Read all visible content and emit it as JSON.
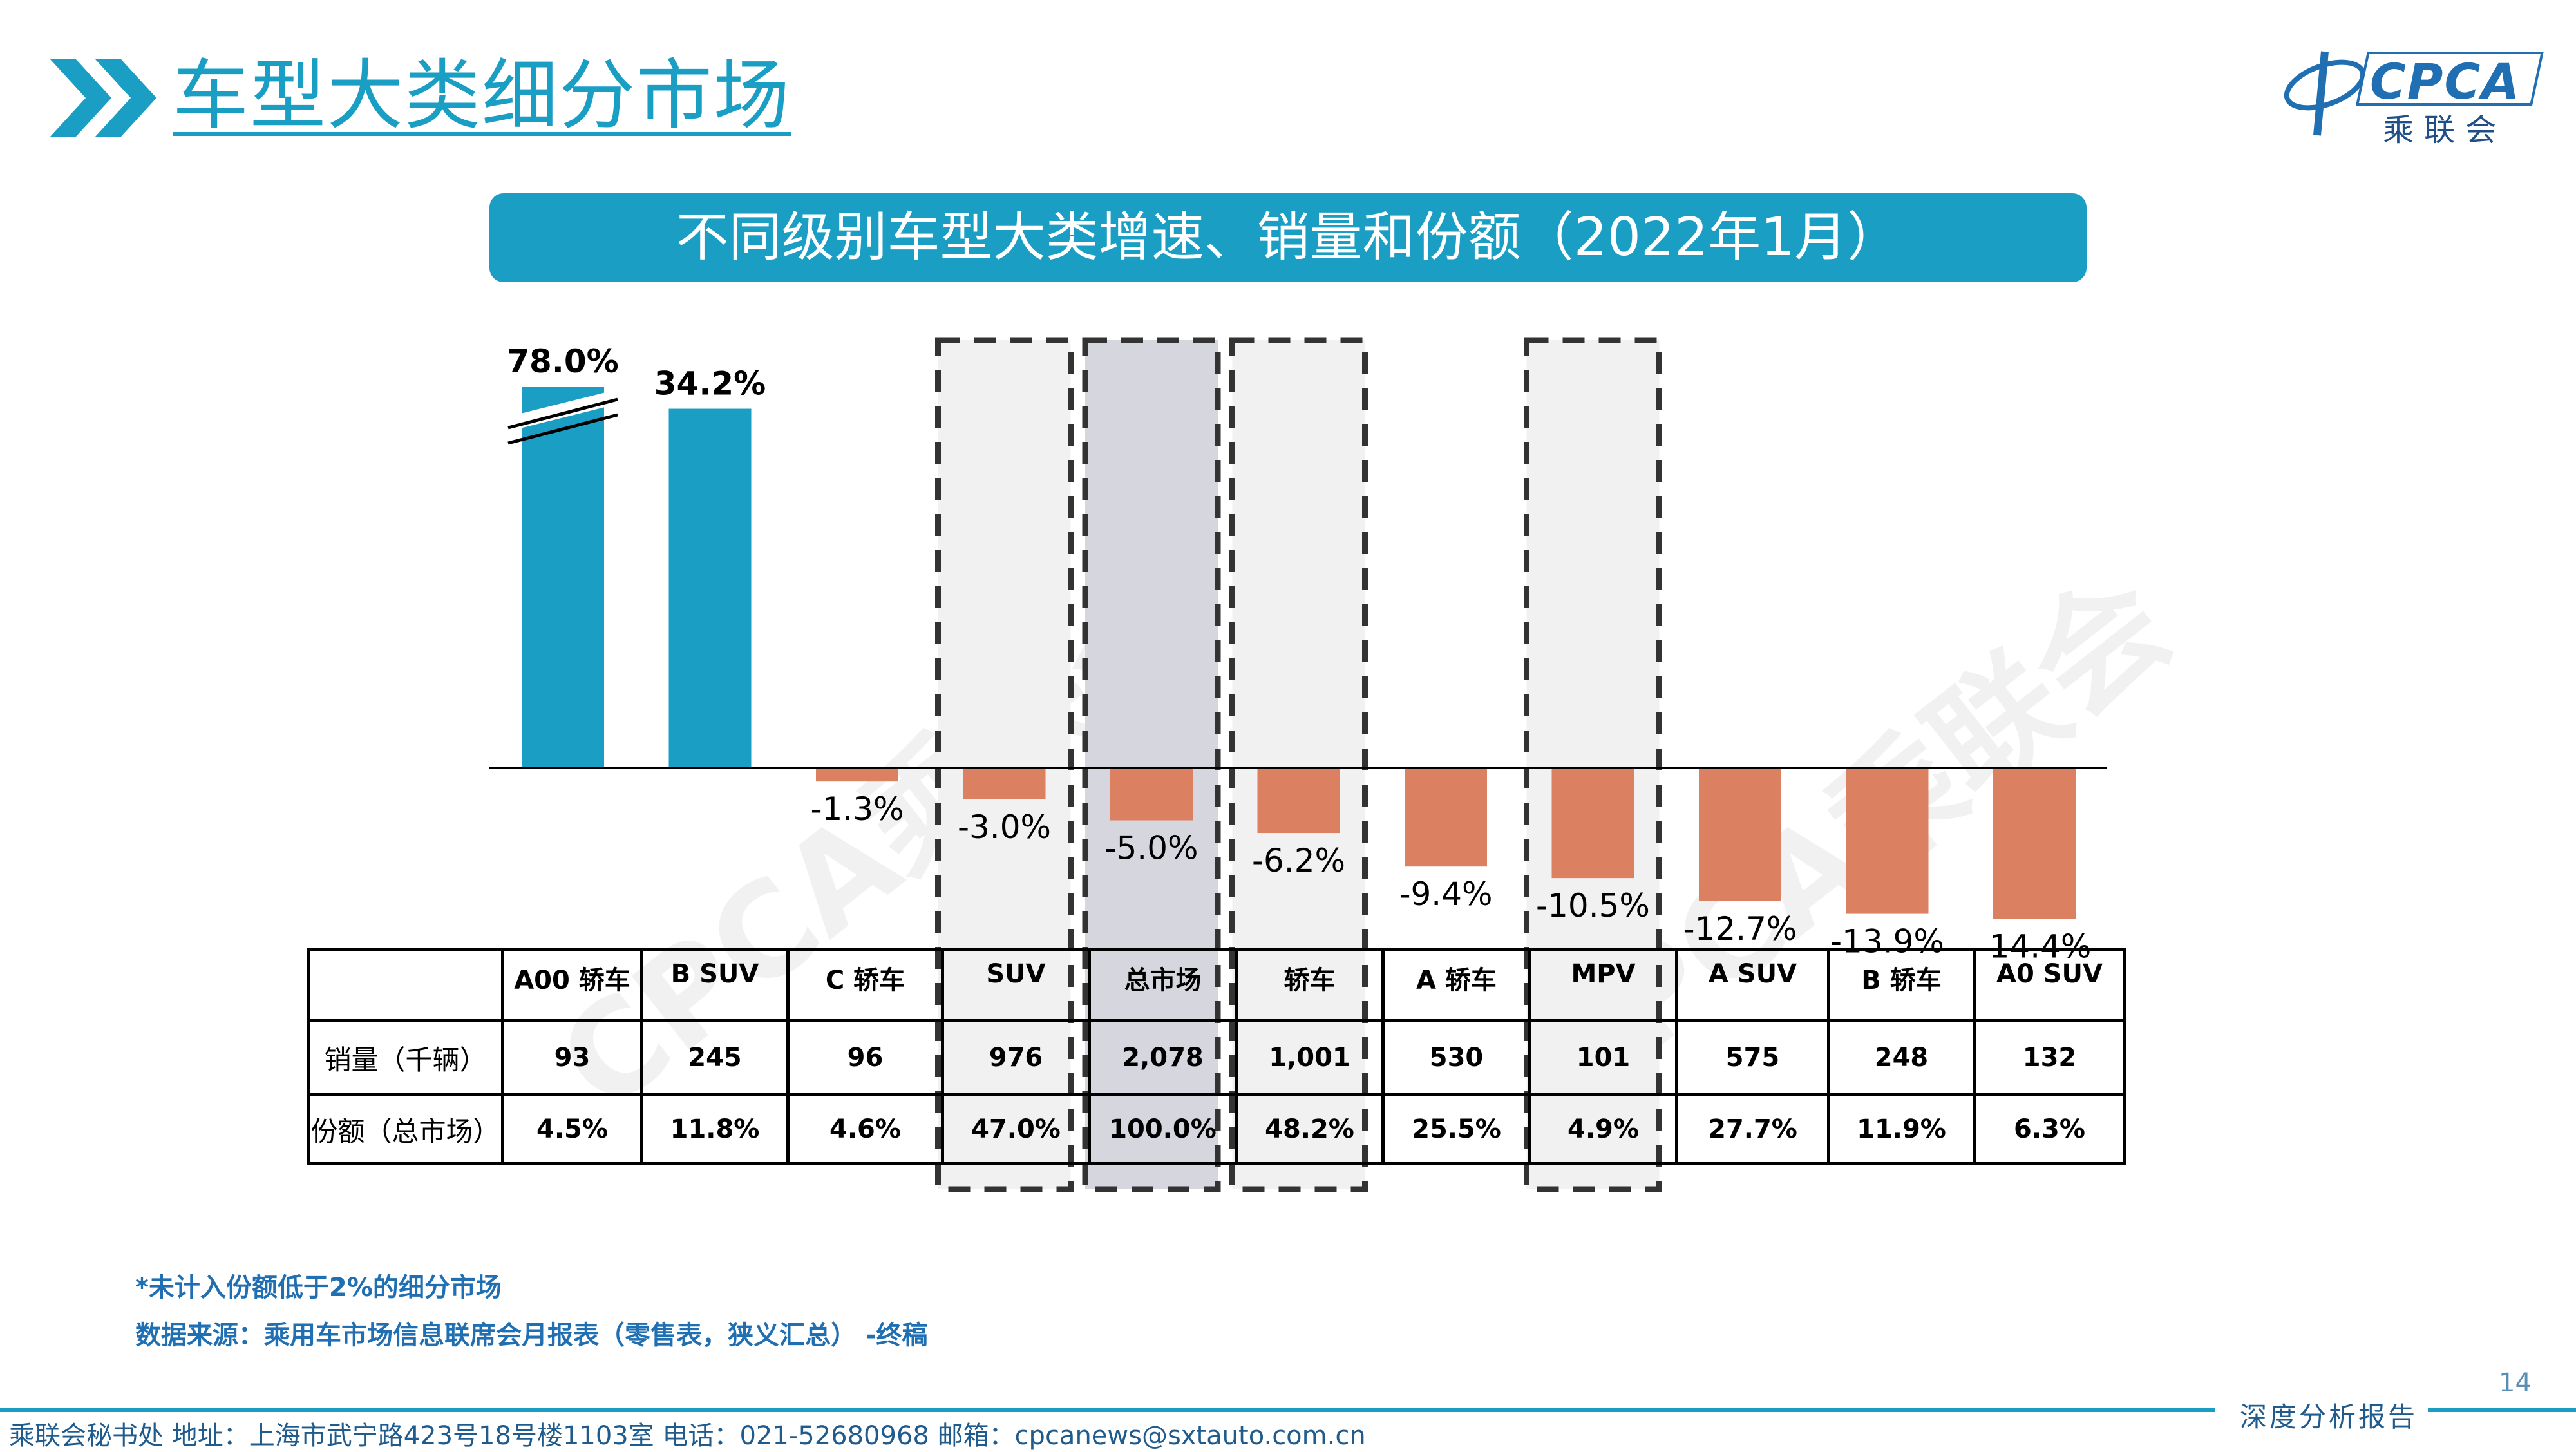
{
  "header": {
    "title": "车型大类细分市场",
    "logo_text": "CPCA",
    "logo_sub": "乘联会"
  },
  "banner": {
    "title": "不同级别车型大类增速、销量和份额（2022年1月）"
  },
  "colors": {
    "accent": "#1a9ec4",
    "positive_bar": "#1a9ec4",
    "negative_bar": "#dc8062",
    "highlight_fill": "#f1f1f1",
    "total_fill": "#d6d6de",
    "footer_text": "#1f5b8c"
  },
  "chart_data": {
    "type": "bar",
    "title": "不同级别车型大类增速、销量和份额（2022年1月）",
    "categories": [
      "A00 轿车",
      "B SUV",
      "C 轿车",
      "SUV",
      "总市场",
      "轿车",
      "A 轿车",
      "MPV",
      "A SUV",
      "B 轿车",
      "A0 SUV"
    ],
    "series": [
      {
        "values": [
          78.0,
          34.2,
          -1.3,
          -3.0,
          -5.0,
          -6.2,
          -9.4,
          -10.5,
          -12.7,
          -13.9,
          -14.4
        ]
      }
    ],
    "value_labels": [
      "78.0%",
      "34.2%",
      "-1.3%",
      "-3.0%",
      "-5.0%",
      "-6.2%",
      "-9.4%",
      "-10.5%",
      "-12.7%",
      "-13.9%",
      "-14.4%"
    ],
    "axis_break": "A00 轿车",
    "highlighted": [
      "SUV",
      "总市场",
      "轿车",
      "MPV"
    ],
    "grid": false,
    "legend": "none"
  },
  "table": {
    "headers": [
      "",
      "A00 轿车",
      "B SUV",
      "C 轿车",
      "SUV",
      "总市场",
      "轿车",
      "A 轿车",
      "MPV",
      "A SUV",
      "B 轿车",
      "A0 SUV"
    ],
    "rows": [
      {
        "label": "销量（千辆）",
        "values": [
          "93",
          "245",
          "96",
          "976",
          "2,078",
          "1,001",
          "530",
          "101",
          "575",
          "248",
          "132"
        ]
      },
      {
        "label": "份额（总市场）",
        "values": [
          "4.5%",
          "11.8%",
          "4.6%",
          "47.0%",
          "100.0%",
          "48.2%",
          "25.5%",
          "4.9%",
          "27.7%",
          "11.9%",
          "6.3%"
        ]
      }
    ]
  },
  "watermark": "CPCA乘联会",
  "notes": {
    "note1": "*未计入份额低于2%的细分市场",
    "source": "数据来源：乘用车市场信息联席会月报表（零售表，狭义汇总） -终稿"
  },
  "footer": {
    "contact": "乘联会秘书处   地址：上海市武宁路423号18号楼1103室   电话：021-52680968   邮箱：cpcanews@sxtauto.com.cn",
    "report_tag": "深度分析报告",
    "page_number": "14"
  }
}
